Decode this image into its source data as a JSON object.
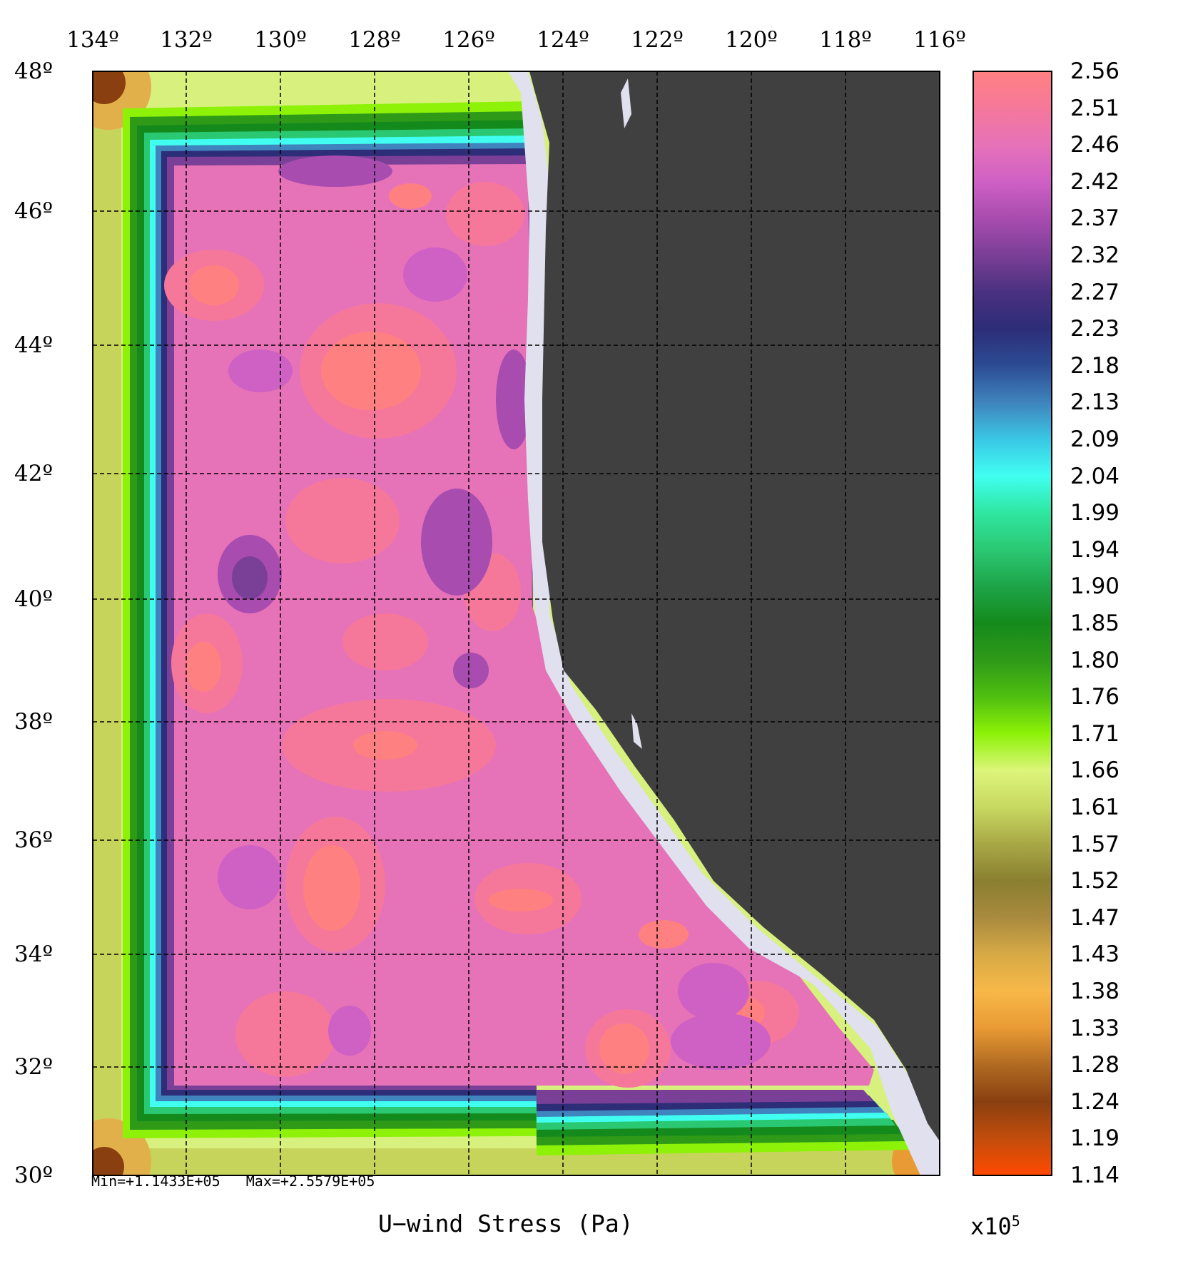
{
  "title": "U−wind Stress (Pa)",
  "stats": {
    "min_label": "Min=+1.1433E+05",
    "max_label": "Max=+2.5579E+05"
  },
  "scale_factor": {
    "base": "x10",
    "exponent": "5"
  },
  "longitude_labels": [
    "134º",
    "132º",
    "130º",
    "128º",
    "126º",
    "124º",
    "122º",
    "120º",
    "118º",
    "116º"
  ],
  "latitude_labels": [
    "48º",
    "46º",
    "44º",
    "42º",
    "40º",
    "38º",
    "36º",
    "34º",
    "32º",
    "30º"
  ],
  "colorbar_labels": [
    "2.56",
    "2.51",
    "2.46",
    "2.42",
    "2.37",
    "2.32",
    "2.27",
    "2.23",
    "2.18",
    "2.13",
    "2.09",
    "2.04",
    "1.99",
    "1.94",
    "1.90",
    "1.85",
    "1.80",
    "1.76",
    "1.71",
    "1.66",
    "1.61",
    "1.57",
    "1.52",
    "1.47",
    "1.43",
    "1.38",
    "1.33",
    "1.28",
    "1.24",
    "1.19",
    "1.14"
  ],
  "colors": {
    "land": "#404040",
    "masked_coast": "#e0e0ee",
    "colorbar_stops": [
      "#ff8080",
      "#f5789b",
      "#e672b8",
      "#cf60c4",
      "#a84caf",
      "#7a3f96",
      "#4a3080",
      "#2d2d78",
      "#2c4c94",
      "#3f84bc",
      "#3ac7e6",
      "#40fff0",
      "#2fe6a0",
      "#2bc873",
      "#1da448",
      "#158a1c",
      "#2f9a18",
      "#4fbf10",
      "#8df208",
      "#dcf57a",
      "#c8d860",
      "#a8a846",
      "#8a7f30",
      "#a98a3e",
      "#d7aa46",
      "#f7b848",
      "#e99a34",
      "#b06a22",
      "#8a3f10",
      "#c24d0c",
      "#ff4a00"
    ]
  }
}
